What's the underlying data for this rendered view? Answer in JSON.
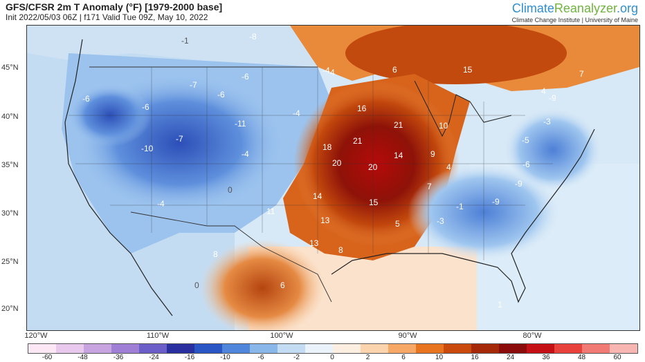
{
  "header": {
    "title": "GFS/CFSR 2m T Anomaly (°F) [1979-2000 base]",
    "subtitle": "Init 2022/05/03 06Z | f171 Valid Tue 09Z, May 10, 2022"
  },
  "brand": {
    "name_part1": "Climate",
    "name_part2": "Reanalyzer",
    "name_part3": ".org",
    "tagline": "Climate Change Institute | University of Maine",
    "color_blue": "#2f8fd0",
    "color_green": "#6fb43f"
  },
  "axes": {
    "lat_labels": [
      "45°N",
      "40°N",
      "35°N",
      "30°N",
      "25°N",
      "20°N"
    ],
    "lon_labels": [
      "120°W",
      "110°W",
      "100°W",
      "90°W",
      "80°W"
    ]
  },
  "colorbar": {
    "tick_labels": [
      "-60",
      "-48",
      "-36",
      "-24",
      "-16",
      "-10",
      "-6",
      "-2",
      "0",
      "2",
      "6",
      "10",
      "16",
      "24",
      "36",
      "48",
      "60"
    ],
    "colors": [
      "#fbe8f4",
      "#e8c8ec",
      "#c7a3e0",
      "#9f7ed6",
      "#6b5ec8",
      "#2a2f9f",
      "#2a55c4",
      "#4f86dc",
      "#8ab7ea",
      "#c3dcf4",
      "#eaf3fb",
      "#fdeee2",
      "#fbd3ad",
      "#f7a866",
      "#e8741f",
      "#c94a0c",
      "#a52908",
      "#8b0a0a",
      "#c40f14",
      "#e8403a",
      "#f27a74",
      "#f7b6b1"
    ]
  },
  "anomaly_labels": [
    {
      "text": "-8",
      "dark": false
    },
    {
      "text": "-1",
      "dark": true
    },
    {
      "text": "-6",
      "dark": false
    },
    {
      "text": "-6",
      "dark": false
    },
    {
      "text": "-7",
      "dark": false
    },
    {
      "text": "-6",
      "dark": false
    },
    {
      "text": "-6",
      "dark": false
    },
    {
      "text": "-11",
      "dark": false
    },
    {
      "text": "-7",
      "dark": false
    },
    {
      "text": "-10",
      "dark": false
    },
    {
      "text": "-4",
      "dark": false
    },
    {
      "text": "-4",
      "dark": false
    },
    {
      "text": "-4",
      "dark": false
    },
    {
      "text": "0",
      "dark": true
    },
    {
      "text": "-4",
      "dark": false
    },
    {
      "text": "16",
      "dark": false
    },
    {
      "text": "21",
      "dark": false
    },
    {
      "text": "21",
      "dark": false
    },
    {
      "text": "18",
      "dark": false
    },
    {
      "text": "20",
      "dark": false
    },
    {
      "text": "20",
      "dark": false
    },
    {
      "text": "14",
      "dark": false
    },
    {
      "text": "14",
      "dark": false
    },
    {
      "text": "15",
      "dark": false
    },
    {
      "text": "15",
      "dark": false
    },
    {
      "text": "11",
      "dark": false
    },
    {
      "text": "13",
      "dark": false
    },
    {
      "text": "13",
      "dark": false
    },
    {
      "text": "8",
      "dark": false
    },
    {
      "text": "10",
      "dark": false
    },
    {
      "text": "9",
      "dark": false
    },
    {
      "text": "4",
      "dark": false
    },
    {
      "text": "7",
      "dark": false
    },
    {
      "text": "5",
      "dark": false
    },
    {
      "text": "-3",
      "dark": false
    },
    {
      "text": "-1",
      "dark": false
    },
    {
      "text": "-9",
      "dark": false
    },
    {
      "text": "-9",
      "dark": false
    },
    {
      "text": "-5",
      "dark": false
    },
    {
      "text": "-6",
      "dark": false
    },
    {
      "text": "-3",
      "dark": false
    },
    {
      "text": "8",
      "dark": false
    },
    {
      "text": "6",
      "dark": false
    },
    {
      "text": "6",
      "dark": false
    },
    {
      "text": "4",
      "dark": false
    },
    {
      "text": "4",
      "dark": false
    },
    {
      "text": "7",
      "dark": false
    },
    {
      "text": "1",
      "dark": false
    },
    {
      "text": "0",
      "dark": true
    },
    {
      "text": "-9",
      "dark": false
    }
  ]
}
